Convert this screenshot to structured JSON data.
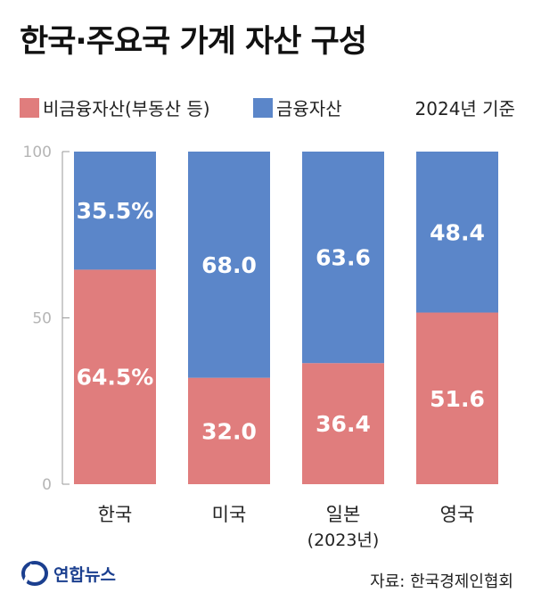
{
  "title": "한국·주요국 가계 자산 구성",
  "legend": {
    "nonfinancial": "비금융자산(부동산 등)",
    "financial": "금융자산",
    "basis": "2024년 기준"
  },
  "colors": {
    "nonfinancial": "#e07d7d",
    "financial": "#5b86c9",
    "axis": "#9a9a9a",
    "logo": "#1b3f8f"
  },
  "chart_data": {
    "type": "bar",
    "stacked": true,
    "categories": [
      "한국",
      "미국",
      "일본",
      "영국"
    ],
    "category_notes": [
      "",
      "",
      "(2023년)",
      ""
    ],
    "series": [
      {
        "name": "비금융자산(부동산 등)",
        "values": [
          64.5,
          32.0,
          36.4,
          51.6
        ],
        "labels": [
          "64.5%",
          "32.0",
          "36.4",
          "51.6"
        ]
      },
      {
        "name": "금융자산",
        "values": [
          35.5,
          68.0,
          63.6,
          48.4
        ],
        "labels": [
          "35.5%",
          "68.0",
          "63.6",
          "48.4"
        ]
      }
    ],
    "ylim": [
      0,
      100
    ],
    "yticks": [
      0,
      50,
      100
    ],
    "ytick_labels": [
      "0",
      "50",
      "100"
    ],
    "grid": false
  },
  "logo": {
    "text": "연합뉴스",
    "icon": "yonhap-logo-icon"
  },
  "source": "자료: 한국경제인협회"
}
